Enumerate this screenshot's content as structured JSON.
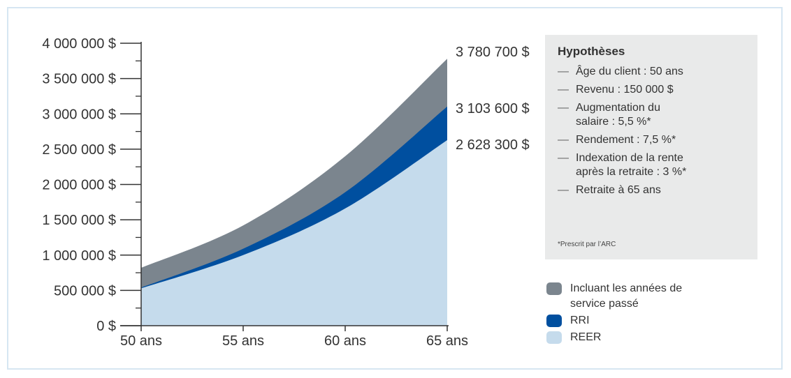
{
  "chart_data": {
    "type": "area",
    "stacked": true,
    "x_labels": [
      "50 ans",
      "55 ans",
      "60 ans",
      "65 ans"
    ],
    "x": [
      50,
      55,
      60,
      65
    ],
    "ylim": [
      0,
      4000000
    ],
    "y_ticks": [
      0,
      500000,
      1000000,
      1500000,
      2000000,
      2500000,
      3000000,
      3500000,
      4000000
    ],
    "y_tick_labels": [
      "0 $",
      "500 000 $",
      "1 000 000 $",
      "1 500 000 $",
      "2 000 000 $",
      "2 500 000 $",
      "3 000 000 $",
      "3 500 000 $",
      "4 000 000 $"
    ],
    "series": [
      {
        "name": "REER",
        "color": "#c5dbec",
        "points": [
          [
            50,
            530000
          ],
          [
            55,
            1000000
          ],
          [
            60,
            1660000
          ],
          [
            65,
            2628300
          ]
        ]
      },
      {
        "name": "RRI",
        "color": "#004f9f",
        "points": [
          [
            50,
            540000
          ],
          [
            55,
            1090000
          ],
          [
            60,
            1890000
          ],
          [
            65,
            3103600
          ]
        ]
      },
      {
        "name": "Incluant les années de service passé",
        "color": "#7b858e",
        "points": [
          [
            50,
            820000
          ],
          [
            55,
            1420000
          ],
          [
            60,
            2400000
          ],
          [
            65,
            3780700
          ]
        ]
      }
    ],
    "end_labels": [
      "3 780 700 $",
      "3 103 600 $",
      "2 628 300 $"
    ]
  },
  "hypotheses": {
    "title": "Hypothèses",
    "items": [
      "Âge du client : 50 ans",
      "Revenu : 150 000 $",
      "Augmentation du salaire : 5,5 %*",
      "Rendement : 7,5 %*",
      "Indexation de la rente après la retraite : 3 %*",
      "Retraite à 65 ans"
    ],
    "footnote": "*Prescrit par l’ARC"
  },
  "legend": [
    {
      "label": "Incluant les années de service passé",
      "color": "#7b858e"
    },
    {
      "label": "RRI",
      "color": "#004f9f"
    },
    {
      "label": "REER",
      "color": "#c5dbec"
    }
  ]
}
